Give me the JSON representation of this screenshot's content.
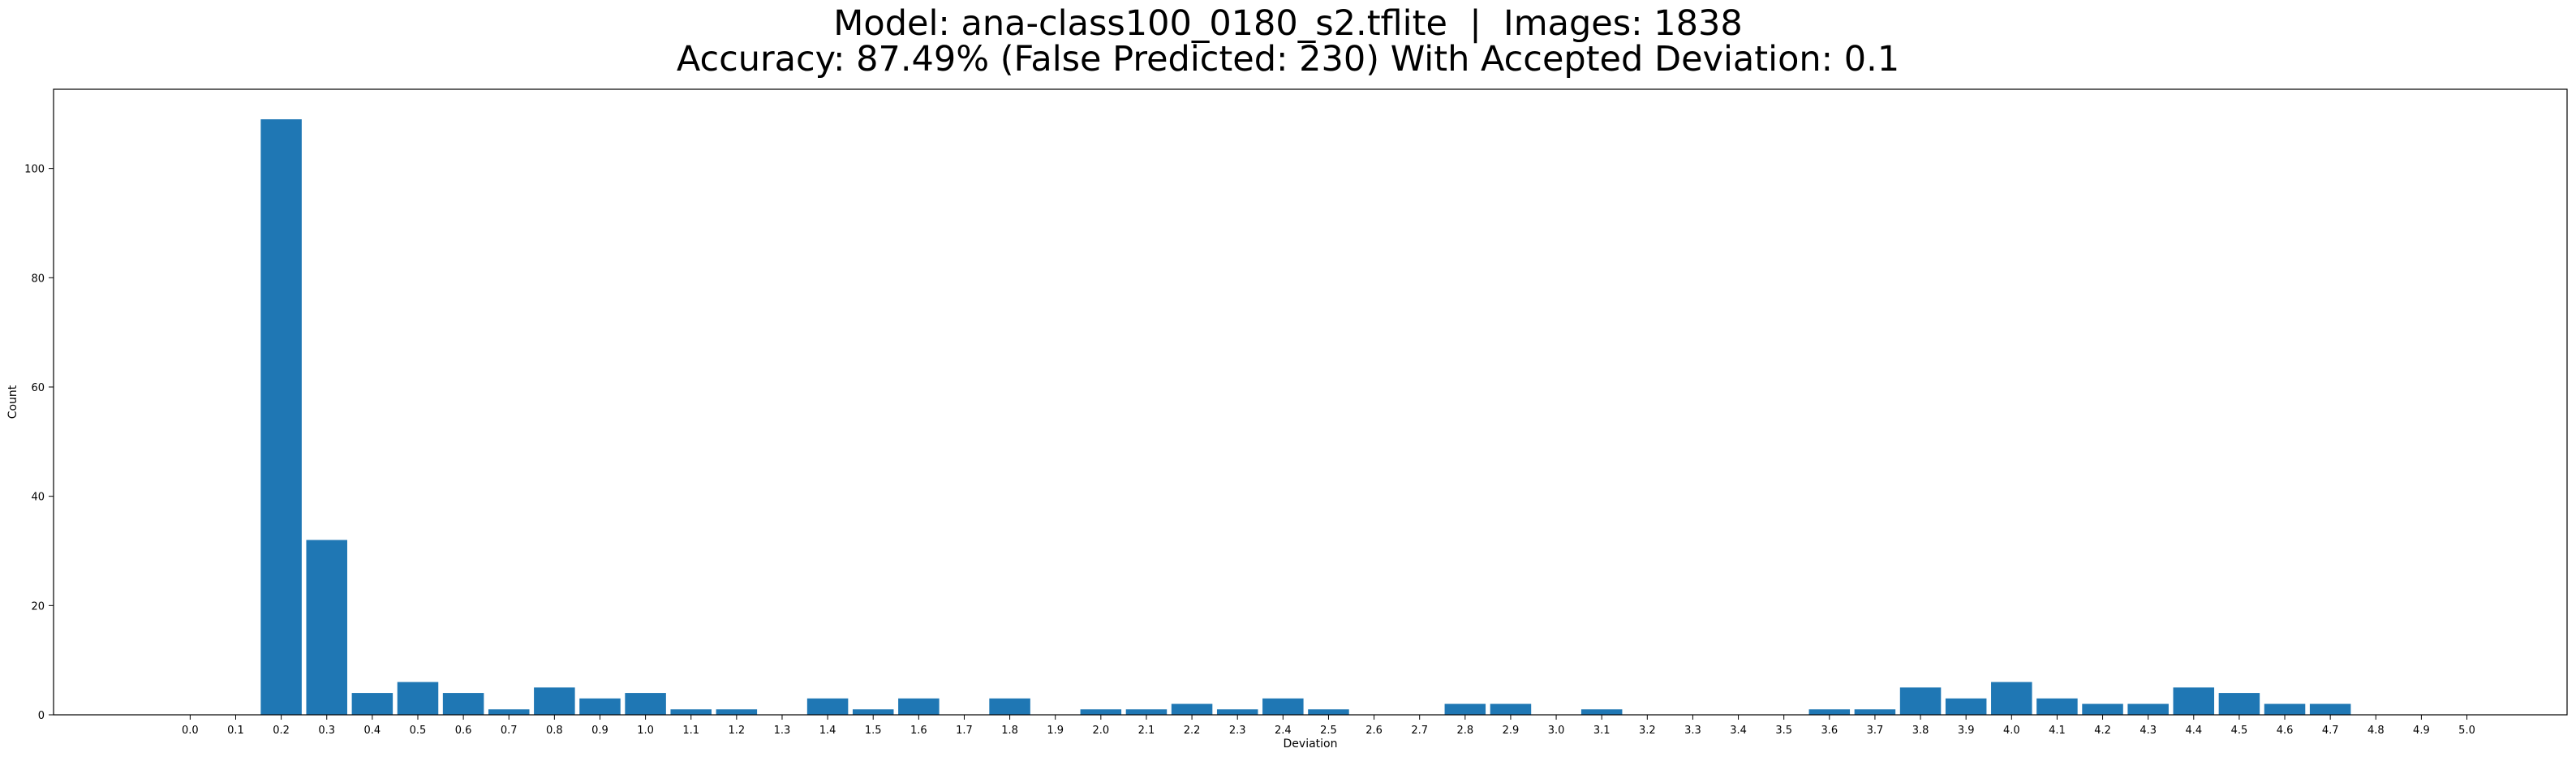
{
  "chart_data": {
    "type": "bar",
    "title_line1": "Model: ana-class100_0180_s2.tflite  |  Images: 1838",
    "title_line2": "Accuracy: 87.49% (False Predicted: 230) With Accepted Deviation: 0.1",
    "xlabel": "Deviation",
    "ylabel": "Count",
    "categories": [
      "0.0",
      "0.1",
      "0.2",
      "0.3",
      "0.4",
      "0.5",
      "0.6",
      "0.7",
      "0.8",
      "0.9",
      "1.0",
      "1.1",
      "1.2",
      "1.3",
      "1.4",
      "1.5",
      "1.6",
      "1.7",
      "1.8",
      "1.9",
      "2.0",
      "2.1",
      "2.2",
      "2.3",
      "2.4",
      "2.5",
      "2.6",
      "2.7",
      "2.8",
      "2.9",
      "3.0",
      "3.1",
      "3.2",
      "3.3",
      "3.4",
      "3.5",
      "3.6",
      "3.7",
      "3.8",
      "3.9",
      "4.0",
      "4.1",
      "4.2",
      "4.3",
      "4.4",
      "4.5",
      "4.6",
      "4.7",
      "4.8",
      "4.9",
      "5.0"
    ],
    "values": [
      0,
      0,
      109,
      32,
      4,
      6,
      4,
      1,
      5,
      3,
      4,
      1,
      1,
      0,
      3,
      1,
      3,
      0,
      3,
      0,
      1,
      1,
      2,
      1,
      3,
      1,
      0,
      0,
      2,
      2,
      0,
      1,
      0,
      0,
      0,
      0,
      1,
      1,
      5,
      3,
      6,
      3,
      2,
      2,
      5,
      4,
      2,
      2,
      0,
      0,
      0
    ],
    "yticks": [
      0,
      20,
      40,
      60,
      80,
      100
    ],
    "ylim": [
      0,
      114.5
    ],
    "xlim": [
      -3,
      52.2
    ],
    "bar_color": "#1f77b4",
    "grid": false,
    "legend": false
  }
}
